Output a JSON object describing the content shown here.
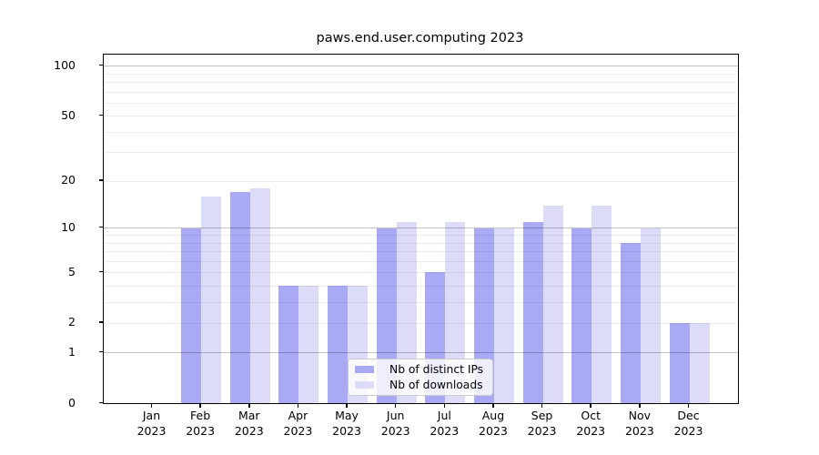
{
  "title": "paws.end.user.computing 2023",
  "colors": {
    "bar_distinct_ips": "#a9a9f6",
    "bar_downloads": "#dcdcf9",
    "grid_major": "#c2c2c2",
    "grid_minor": "#ececec",
    "axis": "#000000",
    "legend_border": "#cccccc",
    "legend_background": "rgba(255,255,255,0.8)"
  },
  "legend": {
    "items": [
      {
        "label": "Nb of distinct IPs",
        "swatch": "#a9a9f6"
      },
      {
        "label": "Nb of downloads",
        "swatch": "#dcdcf9"
      }
    ]
  },
  "chart_data": {
    "type": "bar",
    "title": "paws.end.user.computing 2023",
    "categories": [
      "Jan",
      "Feb",
      "Mar",
      "Apr",
      "May",
      "Jun",
      "Jul",
      "Aug",
      "Sep",
      "Oct",
      "Nov",
      "Dec"
    ],
    "year": "2023",
    "series": [
      {
        "name": "Nb of distinct IPs",
        "color": "#a9a9f6",
        "values": [
          0,
          10,
          17,
          4,
          4,
          10,
          5,
          10,
          11,
          10,
          8,
          2
        ]
      },
      {
        "name": "Nb of downloads",
        "color": "#dcdcf9",
        "values": [
          0,
          16,
          18,
          4,
          4,
          11,
          11,
          10,
          14,
          14,
          10,
          2
        ]
      }
    ],
    "xlabel": "",
    "ylabel": "",
    "yscale": "log1p",
    "ylim": [
      0,
      117
    ],
    "yticks": [
      0,
      1,
      2,
      5,
      10,
      20,
      50,
      100
    ],
    "major_gridlines": [
      1,
      10,
      100
    ],
    "minor_gridlines": [
      2,
      3,
      4,
      5,
      6,
      7,
      8,
      9,
      20,
      30,
      40,
      50,
      60,
      70,
      80,
      90
    ],
    "grid": true,
    "legend_position": "lower center"
  }
}
